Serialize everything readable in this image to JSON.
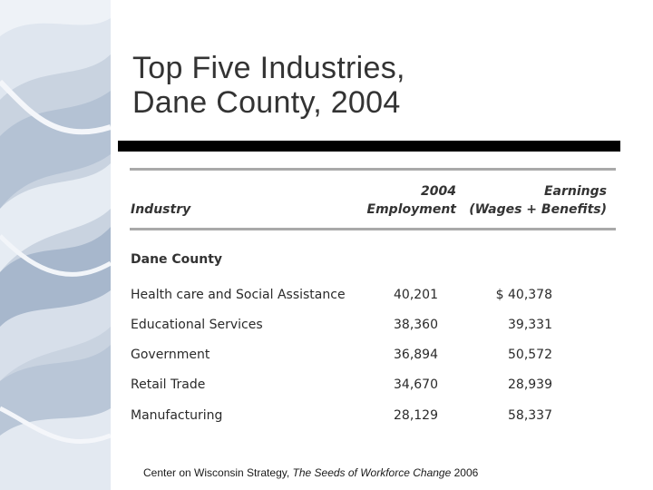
{
  "slide": {
    "title_line1": "Top Five Industries,",
    "title_line2": "Dane County, 2004"
  },
  "table": {
    "headers": {
      "industry": "Industry",
      "employment_line1": "2004",
      "employment_line2": "Employment",
      "earnings_line1": "Earnings",
      "earnings_line2": "(Wages + Benefits)"
    },
    "section_label": "Dane County",
    "rows": [
      {
        "industry": "Health care and Social Assistance",
        "employment": "40,201",
        "earnings": "$ 40,378"
      },
      {
        "industry": "Educational Services",
        "employment": "38,360",
        "earnings": "39,331"
      },
      {
        "industry": "Government",
        "employment": "36,894",
        "earnings": "50,572"
      },
      {
        "industry": "Retail Trade",
        "employment": "34,670",
        "earnings": "28,939"
      },
      {
        "industry": "Manufacturing",
        "employment": "28,129",
        "earnings": "58,337"
      }
    ]
  },
  "source": {
    "prefix": "Center on Wisconsin Strategy, ",
    "title": "The Seeds of Workforce Change",
    "suffix": " 2006"
  },
  "colors": {
    "side_panel_base": "#c6d1df",
    "side_panel_light": "#e8edf4",
    "side_panel_dark": "#9fb0c6",
    "title_rule": "#000000",
    "table_rule": "#a9a9a9"
  }
}
